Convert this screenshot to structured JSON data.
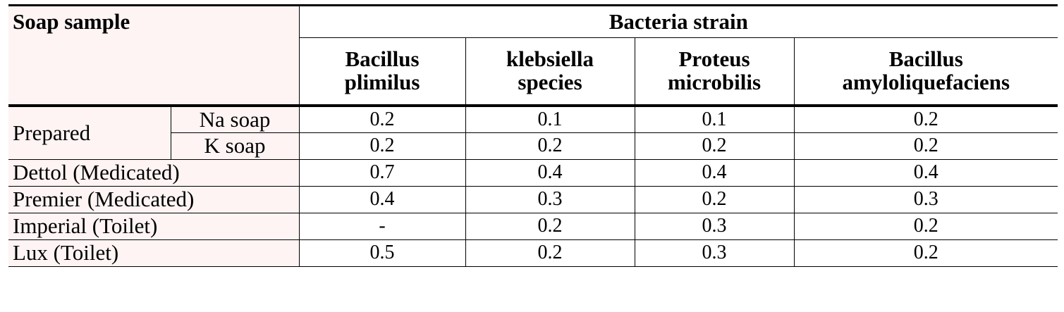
{
  "table": {
    "header": {
      "soap_sample": "Soap sample",
      "bacteria_strain": "Bacteria strain",
      "strains": [
        {
          "line1": "Bacillus",
          "line2": "plimilus"
        },
        {
          "line1": "klebsiella",
          "line2": "species"
        },
        {
          "line1": "Proteus",
          "line2": "microbilis"
        },
        {
          "line1": "Bacillus",
          "line2": "amyloliquefaciens"
        }
      ]
    },
    "group": "Prepared",
    "rows": [
      {
        "label": "Na soap",
        "values": [
          "0.2",
          "0.1",
          "0.1",
          "0.2"
        ]
      },
      {
        "label": "K soap",
        "values": [
          "0.2",
          "0.2",
          "0.2",
          "0.2"
        ]
      },
      {
        "label": "Dettol (Medicated)",
        "values": [
          "0.7",
          "0.4",
          "0.4",
          "0.4"
        ]
      },
      {
        "label": "Premier (Medicated)",
        "values": [
          "0.4",
          "0.3",
          "0.2",
          "0.3"
        ]
      },
      {
        "label": "Imperial (Toilet)",
        "values": [
          "-",
          "0.2",
          "0.3",
          "0.2"
        ]
      },
      {
        "label": "Lux (Toilet)",
        "values": [
          "0.5",
          "0.2",
          "0.3",
          "0.2"
        ]
      }
    ]
  }
}
